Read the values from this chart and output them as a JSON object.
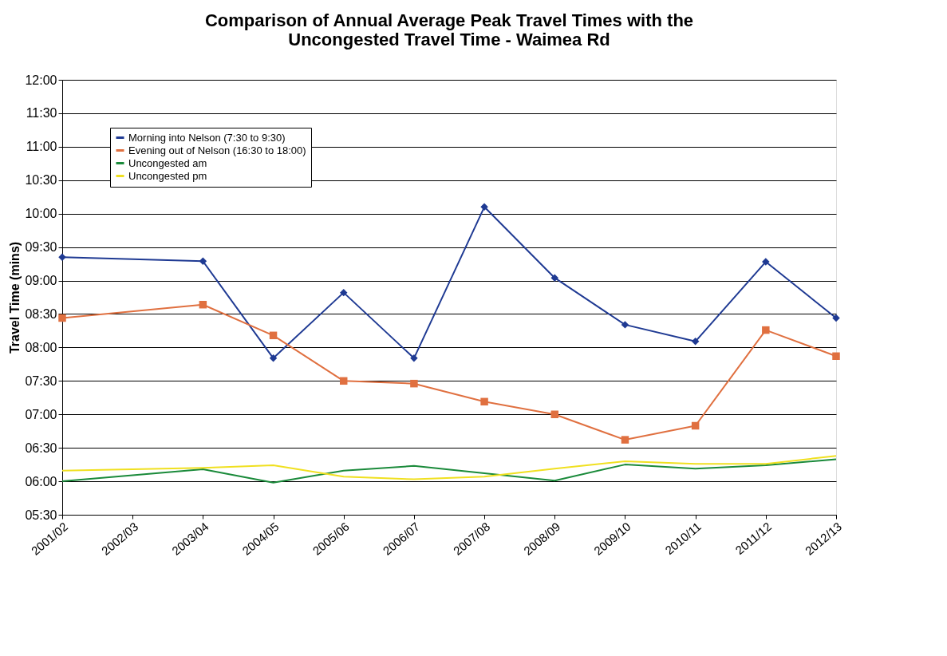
{
  "chart_data": {
    "type": "line",
    "title": "Comparison of Annual Average Peak Travel Times with the\nUncongested Travel Time - Waimea Rd",
    "ylabel": "Travel Time (mins)",
    "categories": [
      "2001/02",
      "2002/03",
      "2003/04",
      "2004/05",
      "2005/06",
      "2006/07",
      "2007/08",
      "2008/09",
      "2009/10",
      "2010/11",
      "2011/12",
      "2012/13"
    ],
    "series": [
      {
        "name": "Morning into Nelson (7:30 to 9:30)",
        "color": "#1f3a93",
        "marker": "diamond",
        "values": [
          9.35,
          null,
          9.29,
          7.84,
          8.82,
          7.84,
          10.1,
          9.04,
          8.34,
          8.09,
          9.28,
          8.44
        ]
      },
      {
        "name": "Evening out of Nelson (16:30 to 18:00)",
        "color": "#e07040",
        "marker": "square",
        "values": [
          8.44,
          null,
          8.64,
          8.18,
          7.5,
          7.46,
          7.19,
          7.0,
          6.62,
          6.83,
          8.26,
          7.87
        ]
      },
      {
        "name": "Uncongested am",
        "color": "#1a8a3a",
        "marker": "none",
        "values": [
          6.0,
          null,
          6.18,
          5.98,
          6.16,
          6.23,
          6.12,
          6.01,
          6.25,
          6.19,
          6.24,
          6.33
        ]
      },
      {
        "name": "Uncongested pm",
        "color": "#f0e020",
        "marker": "none",
        "values": [
          6.16,
          null,
          6.2,
          6.24,
          6.07,
          6.03,
          6.07,
          6.19,
          6.3,
          6.26,
          6.26,
          6.38
        ]
      }
    ],
    "ylim": [
      5.5,
      12
    ],
    "yticks": [
      {
        "value": 5.5,
        "label": "05:30"
      },
      {
        "value": 6,
        "label": "06:00"
      },
      {
        "value": 6.5,
        "label": "06:30"
      },
      {
        "value": 7,
        "label": "07:00"
      },
      {
        "value": 7.5,
        "label": "07:30"
      },
      {
        "value": 8,
        "label": "08:00"
      },
      {
        "value": 8.5,
        "label": "08:30"
      },
      {
        "value": 9,
        "label": "09:00"
      },
      {
        "value": 9.5,
        "label": "09:30"
      },
      {
        "value": 10,
        "label": "10:00"
      },
      {
        "value": 10.5,
        "label": "10:30"
      },
      {
        "value": 11,
        "label": "11:00"
      },
      {
        "value": 11.5,
        "label": "11:30"
      },
      {
        "value": 12,
        "label": "12:00"
      }
    ],
    "grid": "y",
    "legend": "top left",
    "line_style": "solid"
  }
}
